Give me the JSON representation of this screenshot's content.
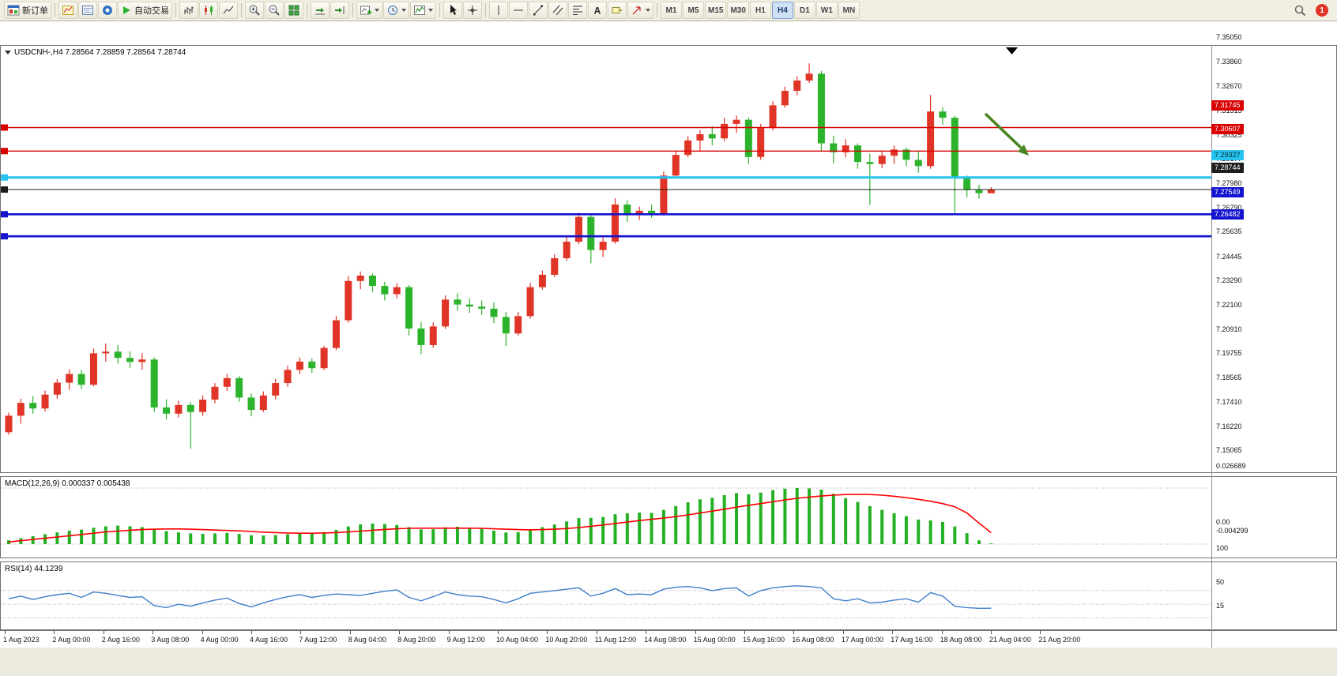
{
  "toolbar": {
    "new_order_label": "新订单",
    "auto_trading_label": "自动交易",
    "text_tool_glyph": "A",
    "timeframes": [
      "M1",
      "M5",
      "M15",
      "M30",
      "H1",
      "H4",
      "D1",
      "W1",
      "MN"
    ],
    "active_timeframe": "H4",
    "notification_count": "1",
    "icons": [
      "new-order",
      "chart-window",
      "terminal",
      "support",
      "auto-trading",
      "bar-chart",
      "candlestick-chart",
      "line-chart",
      "zoom-in",
      "zoom-out",
      "tile-windows",
      "auto-scroll",
      "chart-shift",
      "new-chart-dropdown",
      "profiles-dropdown",
      "indicators-dropdown",
      "cursor",
      "crosshair",
      "vertical-line",
      "horizontal-line",
      "trendline",
      "channel",
      "fibonacci",
      "text",
      "text-label",
      "arrows",
      "search",
      "notification"
    ]
  },
  "chart": {
    "title": "USDCNH-,H4 7.28564 7.28859 7.28564 7.28744",
    "symbol": "USDCNH-",
    "period": "H4"
  },
  "price_axis": {
    "labels": [
      "7.35050",
      "7.33860",
      "7.32670",
      "7.31515",
      "7.30325",
      "7.29177",
      "7.27980",
      "7.26790",
      "7.25635",
      "7.24445",
      "7.23290",
      "7.22100",
      "7.20910",
      "7.19755",
      "7.18565",
      "7.17410",
      "7.16220",
      "7.15065"
    ]
  },
  "time_axis": {
    "labels": [
      "1 Aug 2023",
      "2 Aug 00:00",
      "2 Aug 16:00",
      "3 Aug 08:00",
      "4 Aug 00:00",
      "4 Aug 16:00",
      "7 Aug 12:00",
      "8 Aug 04:00",
      "8 Aug 20:00",
      "9 Aug 12:00",
      "10 Aug 04:00",
      "10 Aug 20:00",
      "11 Aug 12:00",
      "14 Aug 08:00",
      "15 Aug 00:00",
      "15 Aug 16:00",
      "16 Aug 08:00",
      "17 Aug 00:00",
      "17 Aug 16:00",
      "18 Aug 08:00",
      "21 Aug 04:00",
      "21 Aug 20:00"
    ]
  },
  "hlines": [
    {
      "label": "7.31745",
      "value": 7.31745,
      "color": "#d90000",
      "text_color": "#ffffff",
      "thickness": 1.4
    },
    {
      "label": "7.30607",
      "value": 7.30607,
      "color": "#d90000",
      "text_color": "#ffffff",
      "thickness": 1.4
    },
    {
      "label": "7.29327",
      "value": 7.29327,
      "color": "#27c3ee",
      "text_color": "#00333f",
      "thickness": 3
    },
    {
      "label": "7.27549",
      "value": 7.27549,
      "color": "#1414cf",
      "text_color": "#ffffff",
      "thickness": 2.6
    },
    {
      "label": "7.26482",
      "value": 7.26482,
      "color": "#1414cf",
      "text_color": "#ffffff",
      "thickness": 2.6
    }
  ],
  "current_price": {
    "label": "7.28744",
    "value": 7.28744,
    "color": "#1d1d1d",
    "text_color": "#ffffff"
  },
  "indicators": {
    "macd": {
      "label": "MACD(12,26,9) 0.000337 0.005438",
      "axis_labels": [
        "0.026689",
        "0.00",
        "-0.004299"
      ],
      "axis_values": [
        0.026689,
        0,
        -0.004299
      ]
    },
    "rsi": {
      "label": "RSI(14) 44.1239",
      "axis_labels": [
        "100",
        "50",
        "15"
      ],
      "axis_values": [
        100,
        50,
        15
      ],
      "levels": [
        70,
        50,
        30
      ]
    }
  },
  "colors": {
    "bull": "#e03426",
    "bear": "#2cb32c",
    "macd_bar": "#23b123",
    "macd_signal": "#ff0000",
    "rsi_line": "#3f7fca",
    "arrow": "#4a8420",
    "background": "#ffffff",
    "toolbar_bg": "#f1eee2"
  },
  "chart_data": {
    "type": "candlestick",
    "symbol": "USDCNH-",
    "timeframe": "H4",
    "price_range": [
      7.15065,
      7.3505
    ],
    "ohlc": [
      [
        7.17,
        7.1795,
        7.1688,
        7.178
      ],
      [
        7.178,
        7.1862,
        7.1742,
        7.1842
      ],
      [
        7.1842,
        7.1875,
        7.179,
        7.1815
      ],
      [
        7.1815,
        7.1902,
        7.18,
        7.1882
      ],
      [
        7.1882,
        7.1958,
        7.1862,
        7.194
      ],
      [
        7.194,
        7.2005,
        7.1905,
        7.1982
      ],
      [
        7.1982,
        7.2002,
        7.1908,
        7.193
      ],
      [
        7.193,
        7.2105,
        7.1922,
        7.2082
      ],
      [
        7.2082,
        7.213,
        7.2042,
        7.209
      ],
      [
        7.209,
        7.2122,
        7.2032,
        7.206
      ],
      [
        7.206,
        7.2092,
        7.2012,
        7.204
      ],
      [
        7.204,
        7.2082,
        7.2002,
        7.2052
      ],
      [
        7.2052,
        7.2062,
        7.1798,
        7.182
      ],
      [
        7.182,
        7.186,
        7.1762,
        7.179
      ],
      [
        7.179,
        7.1852,
        7.1772,
        7.1832
      ],
      [
        7.1832,
        7.1845,
        7.162,
        7.1798
      ],
      [
        7.1798,
        7.1878,
        7.178,
        7.1858
      ],
      [
        7.1858,
        7.1938,
        7.184,
        7.192
      ],
      [
        7.192,
        7.1982,
        7.19,
        7.1962
      ],
      [
        7.1962,
        7.1972,
        7.1848,
        7.1868
      ],
      [
        7.1868,
        7.1888,
        7.1778,
        7.1808
      ],
      [
        7.1808,
        7.1898,
        7.1798,
        7.1878
      ],
      [
        7.1878,
        7.1958,
        7.186,
        7.1938
      ],
      [
        7.1938,
        7.2022,
        7.192,
        7.2002
      ],
      [
        7.2002,
        7.2062,
        7.1982,
        7.2042
      ],
      [
        7.2042,
        7.2058,
        7.1988,
        7.201
      ],
      [
        7.201,
        7.2118,
        7.2,
        7.2108
      ],
      [
        7.2108,
        7.2262,
        7.2098,
        7.2242
      ],
      [
        7.2242,
        7.2455,
        7.223,
        7.2432
      ],
      [
        7.2432,
        7.2478,
        7.2392,
        7.2458
      ],
      [
        7.2458,
        7.2468,
        7.2378,
        7.2408
      ],
      [
        7.2408,
        7.2428,
        7.2338,
        7.2368
      ],
      [
        7.2368,
        7.2422,
        7.2348,
        7.2402
      ],
      [
        7.2402,
        7.2412,
        7.2168,
        7.2202
      ],
      [
        7.2202,
        7.2232,
        7.2078,
        7.2122
      ],
      [
        7.2122,
        7.2232,
        7.2108,
        7.2212
      ],
      [
        7.2212,
        7.2362,
        7.22,
        7.2342
      ],
      [
        7.2342,
        7.2372,
        7.2288,
        7.2318
      ],
      [
        7.2318,
        7.2348,
        7.2278,
        7.2308
      ],
      [
        7.2308,
        7.2338,
        7.2268,
        7.2298
      ],
      [
        7.2298,
        7.2328,
        7.2228,
        7.2258
      ],
      [
        7.2258,
        7.2282,
        7.2118,
        7.2178
      ],
      [
        7.2178,
        7.2282,
        7.2168,
        7.2262
      ],
      [
        7.2262,
        7.2422,
        7.225,
        7.2402
      ],
      [
        7.2402,
        7.2482,
        7.239,
        7.2462
      ],
      [
        7.2462,
        7.2562,
        7.245,
        7.2542
      ],
      [
        7.2542,
        7.2648,
        7.253,
        7.2622
      ],
      [
        7.2622,
        7.2762,
        7.261,
        7.2742
      ],
      [
        7.2742,
        7.2758,
        7.2518,
        7.2582
      ],
      [
        7.2582,
        7.2642,
        7.2548,
        7.2622
      ],
      [
        7.2622,
        7.2832,
        7.2612,
        7.2802
      ],
      [
        7.2802,
        7.2822,
        7.2718,
        7.2752
      ],
      [
        7.2752,
        7.2792,
        7.2728,
        7.2772
      ],
      [
        7.2772,
        7.2802,
        7.2738,
        7.2758
      ],
      [
        7.2758,
        7.2962,
        7.2748,
        7.2942
      ],
      [
        7.2942,
        7.3062,
        7.293,
        7.3042
      ],
      [
        7.3042,
        7.3132,
        7.303,
        7.3112
      ],
      [
        7.3112,
        7.3162,
        7.3058,
        7.3142
      ],
      [
        7.3142,
        7.3182,
        7.3088,
        7.3122
      ],
      [
        7.3122,
        7.3222,
        7.3108,
        7.3192
      ],
      [
        7.3192,
        7.3232,
        7.3148,
        7.3212
      ],
      [
        7.3212,
        7.3222,
        7.2998,
        7.3032
      ],
      [
        7.3032,
        7.3192,
        7.3018,
        7.3172
      ],
      [
        7.3172,
        7.3302,
        7.316,
        7.3282
      ],
      [
        7.3282,
        7.3372,
        7.327,
        7.3352
      ],
      [
        7.3352,
        7.3422,
        7.333,
        7.3402
      ],
      [
        7.3402,
        7.3485,
        7.339,
        7.3435
      ],
      [
        7.3435,
        7.3448,
        7.306,
        7.3098
      ],
      [
        7.3098,
        7.3135,
        7.3002,
        7.3055
      ],
      [
        7.3055,
        7.3118,
        7.303,
        7.3088
      ],
      [
        7.3088,
        7.3098,
        7.2975,
        7.3008
      ],
      [
        7.3008,
        7.3048,
        7.28,
        7.2998
      ],
      [
        7.2998,
        7.3058,
        7.2978,
        7.3038
      ],
      [
        7.3038,
        7.3088,
        7.2998,
        7.3068
      ],
      [
        7.3068,
        7.3078,
        7.2988,
        7.3018
      ],
      [
        7.3018,
        7.3058,
        7.2955,
        7.2988
      ],
      [
        7.2988,
        7.3332,
        7.2975,
        7.3252
      ],
      [
        7.3252,
        7.3272,
        7.3188,
        7.3222
      ],
      [
        7.3222,
        7.3232,
        7.2762,
        7.2932
      ],
      [
        7.2932,
        7.2942,
        7.2838,
        7.2872
      ],
      [
        7.2872,
        7.2898,
        7.283,
        7.28564
      ],
      [
        7.28564,
        7.28859,
        7.28564,
        7.28744
      ]
    ],
    "macd_histogram": [
      0.0018,
      0.0028,
      0.0038,
      0.0047,
      0.0056,
      0.0064,
      0.0069,
      0.0078,
      0.0085,
      0.0088,
      0.0085,
      0.0081,
      0.0072,
      0.0062,
      0.0056,
      0.0051,
      0.0049,
      0.0051,
      0.0053,
      0.0048,
      0.0042,
      0.0041,
      0.0043,
      0.0047,
      0.0051,
      0.0053,
      0.0057,
      0.0068,
      0.0084,
      0.0094,
      0.0098,
      0.0096,
      0.0091,
      0.0081,
      0.007,
      0.0071,
      0.008,
      0.0083,
      0.0079,
      0.0073,
      0.0064,
      0.0055,
      0.0057,
      0.0071,
      0.0081,
      0.0093,
      0.0108,
      0.0124,
      0.0125,
      0.0129,
      0.0142,
      0.0147,
      0.015,
      0.0149,
      0.0163,
      0.0181,
      0.0199,
      0.0213,
      0.0221,
      0.0233,
      0.0243,
      0.0237,
      0.0245,
      0.0257,
      0.0264,
      0.0267,
      0.0265,
      0.0259,
      0.024,
      0.0219,
      0.0201,
      0.0181,
      0.0163,
      0.0147,
      0.0133,
      0.0117,
      0.0113,
      0.0106,
      0.0084,
      0.0052,
      0.0018,
      0.000337
    ],
    "macd_signal": [
      0.001,
      0.0016,
      0.0022,
      0.0028,
      0.0034,
      0.004,
      0.0046,
      0.0052,
      0.0058,
      0.0062,
      0.0066,
      0.0069,
      0.0071,
      0.0072,
      0.0072,
      0.0071,
      0.0069,
      0.0067,
      0.0065,
      0.0063,
      0.006,
      0.0057,
      0.0055,
      0.0053,
      0.0052,
      0.0052,
      0.0053,
      0.0055,
      0.0058,
      0.0062,
      0.0066,
      0.007,
      0.0073,
      0.0075,
      0.0076,
      0.0076,
      0.0076,
      0.0076,
      0.0076,
      0.0075,
      0.0073,
      0.0071,
      0.0069,
      0.0068,
      0.0069,
      0.0071,
      0.0074,
      0.0079,
      0.0085,
      0.0091,
      0.0098,
      0.0105,
      0.0112,
      0.0118,
      0.0124,
      0.0131,
      0.0139,
      0.0148,
      0.0157,
      0.0166,
      0.0176,
      0.0185,
      0.0193,
      0.0202,
      0.021,
      0.0218,
      0.0224,
      0.0229,
      0.0233,
      0.0236,
      0.0237,
      0.0236,
      0.0233,
      0.0228,
      0.0221,
      0.0213,
      0.0204,
      0.0193,
      0.0178,
      0.0148,
      0.01,
      0.0054
    ],
    "macd_range": [
      -0.004299,
      0.026689
    ],
    "rsi_values": [
      58,
      62,
      57,
      61,
      64,
      66,
      60,
      68,
      66,
      63,
      60,
      61,
      48,
      45,
      50,
      47,
      52,
      56,
      59,
      51,
      46,
      52,
      57,
      61,
      64,
      60,
      63,
      65,
      64,
      63,
      66,
      69,
      71,
      60,
      55,
      61,
      68,
      64,
      62,
      61,
      57,
      52,
      58,
      66,
      68,
      70,
      72,
      74,
      62,
      66,
      73,
      64,
      65,
      64,
      72,
      75,
      76,
      74,
      70,
      73,
      74,
      62,
      70,
      74,
      76,
      77,
      76,
      74,
      58,
      55,
      58,
      52,
      53,
      56,
      58,
      53,
      67,
      62,
      47,
      45,
      44,
      44.1239
    ],
    "annotation_arrow": {
      "color": "#4a8420",
      "direction": "down-right"
    }
  }
}
